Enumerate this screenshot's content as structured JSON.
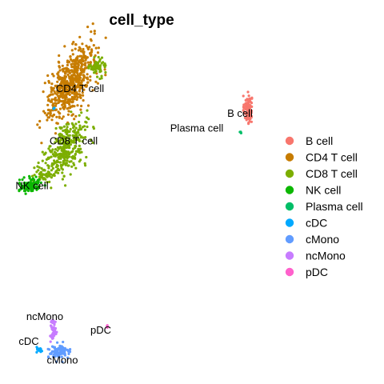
{
  "chart_data": {
    "type": "scatter",
    "title": "cell_type",
    "xlabel": "",
    "ylabel": "",
    "grid": false,
    "axes_visible": false,
    "legend_position": "right",
    "series": [
      {
        "name": "B cell",
        "color": "#F8766D",
        "clusters": [
          {
            "cx": 5.5,
            "cy": 5.4,
            "sx": 0.12,
            "sy": 0.55,
            "n": 140
          }
        ]
      },
      {
        "name": "CD4 T cell",
        "color": "#C77C00",
        "clusters": [
          {
            "cx": -5.5,
            "cy": 7.6,
            "sx": 0.55,
            "sy": 1.6,
            "n": 600,
            "tilt": -0.35
          }
        ]
      },
      {
        "name": "CD8 T cell",
        "color": "#7CAE00",
        "clusters": [
          {
            "cx": -5.9,
            "cy": 2.2,
            "sx": 0.55,
            "sy": 1.2,
            "n": 330,
            "tilt": -0.35
          },
          {
            "cx": -3.9,
            "cy": 8.8,
            "sx": 0.25,
            "sy": 0.35,
            "n": 60
          },
          {
            "cx": -7.3,
            "cy": 0.2,
            "sx": 0.25,
            "sy": 0.3,
            "n": 40
          }
        ]
      },
      {
        "name": "NK cell",
        "color": "#0CB702",
        "clusters": [
          {
            "cx": -8.1,
            "cy": -0.7,
            "sx": 0.35,
            "sy": 0.28,
            "n": 110
          }
        ]
      },
      {
        "name": "Plasma cell",
        "color": "#00BE67",
        "clusters": [
          {
            "cx": 5.0,
            "cy": 3.6,
            "sx": 0.05,
            "sy": 0.06,
            "n": 4
          }
        ]
      },
      {
        "name": "cDC",
        "color": "#00A9FF",
        "clusters": [
          {
            "cx": -7.5,
            "cy": -13.9,
            "sx": 0.12,
            "sy": 0.1,
            "n": 18
          },
          {
            "cx": -6.6,
            "cy": 5.5,
            "sx": 0.04,
            "sy": 0.05,
            "n": 3
          }
        ]
      },
      {
        "name": "cMono",
        "color": "#619CFF",
        "clusters": [
          {
            "cx": -6.3,
            "cy": -14.1,
            "sx": 0.35,
            "sy": 0.25,
            "n": 90
          }
        ]
      },
      {
        "name": "ncMono",
        "color": "#C77CFF",
        "clusters": [
          {
            "cx": -6.7,
            "cy": -12.3,
            "sx": 0.1,
            "sy": 0.45,
            "n": 45
          }
        ]
      },
      {
        "name": "pDC",
        "color": "#FF61CC",
        "clusters": [
          {
            "cx": -3.3,
            "cy": -12.0,
            "sx": 0.05,
            "sy": 0.05,
            "n": 6
          }
        ]
      }
    ],
    "cluster_labels": [
      {
        "text": "CD4 T cell",
        "x": -5.0,
        "y": 6.8
      },
      {
        "text": "CD8 T cell",
        "x": -5.4,
        "y": 2.6
      },
      {
        "text": "NK cell",
        "x": -8.0,
        "y": -1.0
      },
      {
        "text": "B cell",
        "x": 5.0,
        "y": 4.8
      },
      {
        "text": "Plasma cell",
        "x": 2.3,
        "y": 3.6
      },
      {
        "text": "ncMono",
        "x": -7.2,
        "y": -11.5
      },
      {
        "text": "cDC",
        "x": -8.2,
        "y": -13.5
      },
      {
        "text": "pDC",
        "x": -3.7,
        "y": -12.6
      },
      {
        "text": "cMono",
        "x": -6.1,
        "y": -15.0
      }
    ]
  }
}
